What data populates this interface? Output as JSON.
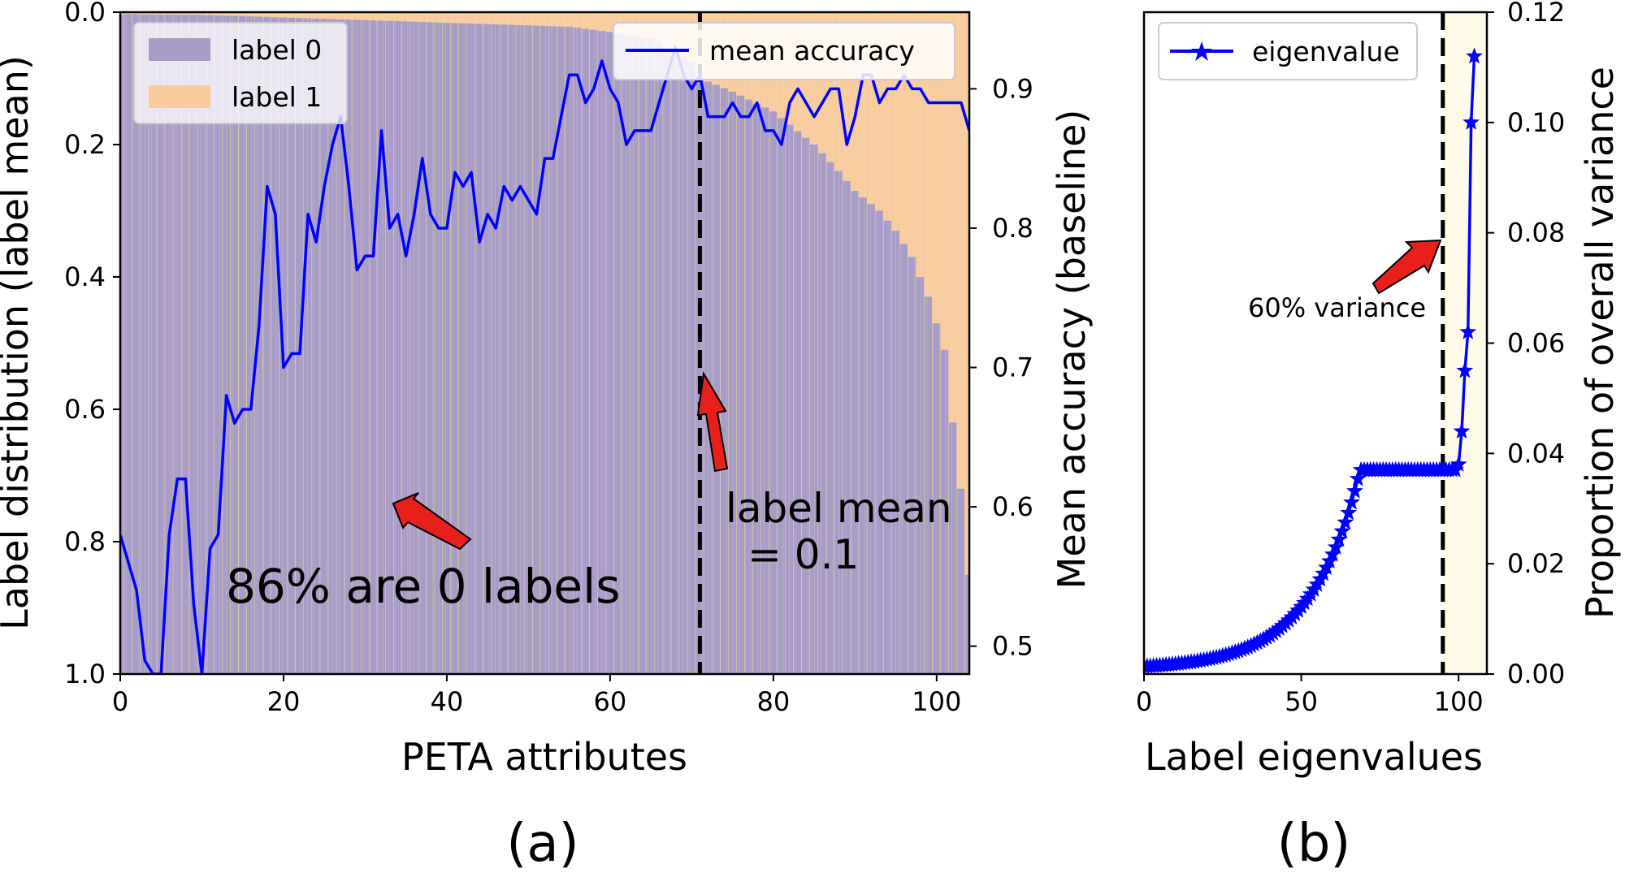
{
  "chart_data": [
    {
      "type": "bar",
      "panel_label": "(a)",
      "xlabel": "PETA attributes",
      "ylabel": "Label distribution (label mean)",
      "y2label": "Mean accuracy (baseline)",
      "xlim": [
        0,
        104
      ],
      "ylim": [
        1.0,
        0.0
      ],
      "y2lim": [
        0.48,
        0.955
      ],
      "xticks": [
        "0",
        "20",
        "40",
        "60",
        "80",
        "100"
      ],
      "yticks": [
        "0.0",
        "0.2",
        "0.4",
        "0.6",
        "0.8",
        "1.0"
      ],
      "y2ticks": [
        "0.5",
        "0.6",
        "0.7",
        "0.8",
        "0.9"
      ],
      "legend": [
        "label 0",
        "label 1"
      ],
      "legend2": [
        "mean accuracy"
      ],
      "colors": {
        "label0": "#a79dc6",
        "label1": "#f7cc9f",
        "line": "#0000ff",
        "vline": "#000000",
        "arrow": "#e8201c"
      },
      "label_mean_profile": [
        [
          0,
          0.003
        ],
        [
          10,
          0.004
        ],
        [
          20,
          0.008
        ],
        [
          30,
          0.012
        ],
        [
          40,
          0.016
        ],
        [
          50,
          0.02
        ],
        [
          55,
          0.022
        ],
        [
          60,
          0.03
        ],
        [
          65,
          0.04
        ],
        [
          70,
          0.075
        ],
        [
          71,
          0.1
        ],
        [
          75,
          0.12
        ],
        [
          80,
          0.15
        ],
        [
          85,
          0.2
        ],
        [
          88,
          0.24
        ],
        [
          90,
          0.27
        ],
        [
          93,
          0.3
        ],
        [
          95,
          0.33
        ],
        [
          97,
          0.37
        ],
        [
          99,
          0.43
        ],
        [
          101,
          0.51
        ],
        [
          102,
          0.62
        ],
        [
          103,
          0.72
        ],
        [
          104,
          0.85
        ]
      ],
      "accuracy_x": [
        0,
        1,
        2,
        3,
        4,
        5,
        6,
        7,
        8,
        9,
        10,
        11,
        12,
        13,
        14,
        15,
        16,
        17,
        18,
        19,
        20,
        21,
        22,
        23,
        24,
        25,
        26,
        27,
        28,
        29,
        30,
        31,
        32,
        33,
        34,
        35,
        36,
        37,
        38,
        39,
        40,
        41,
        42,
        43,
        44,
        45,
        46,
        47,
        48,
        49,
        50,
        51,
        52,
        53,
        54,
        55,
        56,
        57,
        58,
        59,
        60,
        61,
        62,
        63,
        64,
        65,
        66,
        67,
        68,
        69,
        70,
        71,
        72,
        73,
        74,
        75,
        76,
        77,
        78,
        79,
        80,
        81,
        82,
        83,
        84,
        85,
        86,
        87,
        88,
        89,
        90,
        91,
        92,
        93,
        94,
        95,
        96,
        97,
        98,
        99,
        100,
        101,
        102,
        103,
        104
      ],
      "accuracy_values": [
        0.58,
        0.56,
        0.54,
        0.49,
        0.48,
        0.48,
        0.58,
        0.62,
        0.62,
        0.53,
        0.48,
        0.57,
        0.58,
        0.68,
        0.66,
        0.67,
        0.67,
        0.73,
        0.83,
        0.81,
        0.7,
        0.71,
        0.71,
        0.81,
        0.79,
        0.83,
        0.86,
        0.88,
        0.83,
        0.77,
        0.78,
        0.78,
        0.87,
        0.8,
        0.81,
        0.78,
        0.81,
        0.85,
        0.81,
        0.8,
        0.8,
        0.84,
        0.83,
        0.84,
        0.79,
        0.81,
        0.8,
        0.83,
        0.82,
        0.83,
        0.82,
        0.81,
        0.85,
        0.85,
        0.88,
        0.91,
        0.91,
        0.89,
        0.9,
        0.92,
        0.9,
        0.89,
        0.86,
        0.87,
        0.87,
        0.87,
        0.89,
        0.91,
        0.93,
        0.91,
        0.9,
        0.91,
        0.88,
        0.88,
        0.88,
        0.89,
        0.88,
        0.88,
        0.89,
        0.87,
        0.87,
        0.86,
        0.89,
        0.9,
        0.89,
        0.88,
        0.89,
        0.9,
        0.9,
        0.86,
        0.88,
        0.91,
        0.91,
        0.89,
        0.9,
        0.9,
        0.91,
        0.9,
        0.9,
        0.89,
        0.89,
        0.89,
        0.89,
        0.89,
        0.87
      ],
      "vline_x": 71,
      "annotations": [
        "86% are 0 labels",
        "label mean",
        "=  0.1"
      ]
    },
    {
      "type": "line",
      "panel_label": "(b)",
      "xlabel": "Label eigenvalues",
      "ylabel": "Proportion of overall variance",
      "xlim": [
        0,
        109
      ],
      "ylim": [
        0,
        0.12
      ],
      "xticks": [
        "0",
        "50",
        "100"
      ],
      "yticks": [
        "0.00",
        "0.02",
        "0.04",
        "0.06",
        "0.08",
        "0.10",
        "0.12"
      ],
      "legend": [
        "eigenvalue"
      ],
      "vline_x": 95,
      "highlight_span": [
        95,
        109
      ],
      "tail_values": [
        [
          100,
          0.038
        ],
        [
          101,
          0.044
        ],
        [
          102,
          0.055
        ],
        [
          103,
          0.062
        ],
        [
          104,
          0.1
        ],
        [
          105,
          0.112
        ]
      ],
      "annotations": [
        "60% variance"
      ],
      "colors": {
        "line": "#0000ff",
        "span": "#fffbe8"
      }
    }
  ]
}
